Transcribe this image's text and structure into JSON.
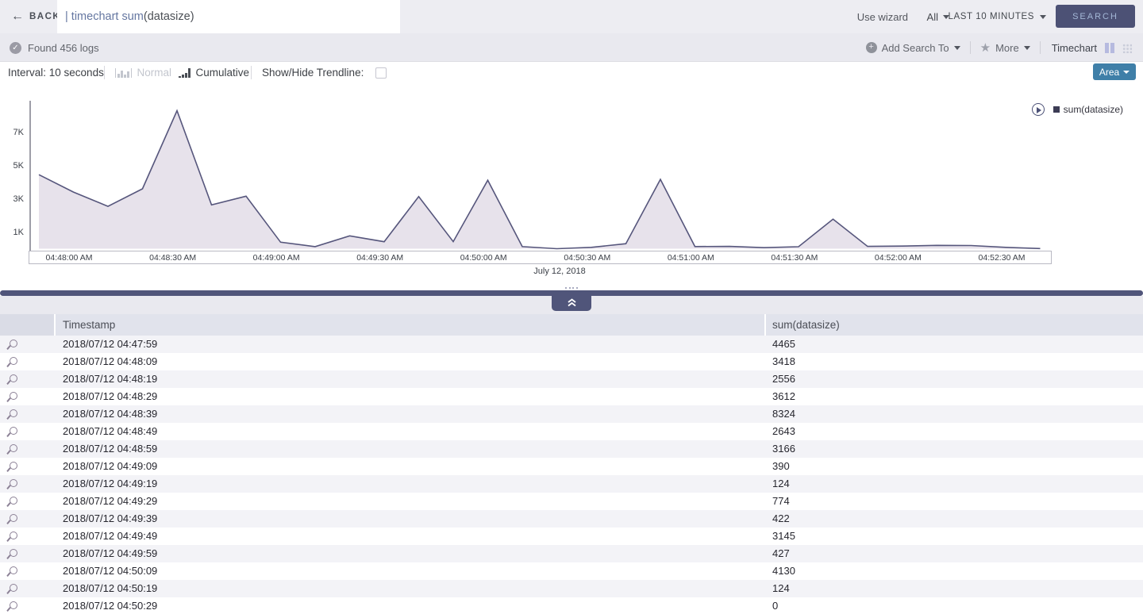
{
  "topbar": {
    "back_label": "BACK",
    "query_main": "| timechart sum",
    "query_arg": "(datasize)",
    "use_wizard": "Use wizard",
    "scope": "All",
    "time_range": "LAST 10 MINUTES",
    "search_button": "SEARCH"
  },
  "statusbar": {
    "found_text": "Found 456 logs",
    "add_search_to": "Add Search To",
    "more": "More",
    "view_label": "Timechart"
  },
  "controls": {
    "interval": "Interval: 10 seconds",
    "normal": "Normal",
    "cumulative": "Cumulative",
    "trendline_label": "Show/Hide Trendline:",
    "chart_type_button": "Area"
  },
  "chart_data": {
    "type": "area",
    "title": "July 12, 2018",
    "legend": "sum(datasize)",
    "ylabel": "",
    "xlabel": "July 12, 2018",
    "ylim": [
      0,
      8400
    ],
    "grid": false,
    "legend_position": "top-right",
    "x": [
      "04:47:59",
      "04:48:09",
      "04:48:19",
      "04:48:29",
      "04:48:39",
      "04:48:49",
      "04:48:59",
      "04:49:09",
      "04:49:19",
      "04:49:29",
      "04:49:39",
      "04:49:49",
      "04:49:59",
      "04:50:09",
      "04:50:19",
      "04:50:29",
      "04:50:39",
      "04:50:49",
      "04:50:59",
      "04:51:09",
      "04:51:19",
      "04:51:29",
      "04:51:39",
      "04:51:49",
      "04:51:59",
      "04:52:09",
      "04:52:19",
      "04:52:29",
      "04:52:39",
      "04:52:49"
    ],
    "values": [
      4465,
      3418,
      2556,
      3612,
      8324,
      2643,
      3166,
      390,
      124,
      774,
      422,
      3145,
      427,
      4130,
      124,
      0,
      80,
      300,
      4180,
      130,
      140,
      60,
      120,
      1780,
      140,
      160,
      200,
      190,
      80,
      10
    ],
    "x_ticks": [
      "04:48:00 AM",
      "04:48:30 AM",
      "04:49:00 AM",
      "04:49:30 AM",
      "04:50:00 AM",
      "04:50:30 AM",
      "04:51:00 AM",
      "04:51:30 AM",
      "04:52:00 AM",
      "04:52:30 AM"
    ],
    "y_ticks": [
      {
        "label": "7K",
        "value": 7000
      },
      {
        "label": "5K",
        "value": 5000
      },
      {
        "label": "3K",
        "value": 3000
      },
      {
        "label": "1K",
        "value": 1000
      }
    ],
    "colors": {
      "fill": "#e7e2eb",
      "stroke": "#56567c",
      "axis": "#3c3c50"
    }
  },
  "table": {
    "columns": [
      "Timestamp",
      "sum(datasize)"
    ],
    "rows": [
      [
        "2018/07/12 04:47:59",
        "4465"
      ],
      [
        "2018/07/12 04:48:09",
        "3418"
      ],
      [
        "2018/07/12 04:48:19",
        "2556"
      ],
      [
        "2018/07/12 04:48:29",
        "3612"
      ],
      [
        "2018/07/12 04:48:39",
        "8324"
      ],
      [
        "2018/07/12 04:48:49",
        "2643"
      ],
      [
        "2018/07/12 04:48:59",
        "3166"
      ],
      [
        "2018/07/12 04:49:09",
        "390"
      ],
      [
        "2018/07/12 04:49:19",
        "124"
      ],
      [
        "2018/07/12 04:49:29",
        "774"
      ],
      [
        "2018/07/12 04:49:39",
        "422"
      ],
      [
        "2018/07/12 04:49:49",
        "3145"
      ],
      [
        "2018/07/12 04:49:59",
        "427"
      ],
      [
        "2018/07/12 04:50:09",
        "4130"
      ],
      [
        "2018/07/12 04:50:19",
        "124"
      ],
      [
        "2018/07/12 04:50:29",
        "0"
      ]
    ]
  }
}
